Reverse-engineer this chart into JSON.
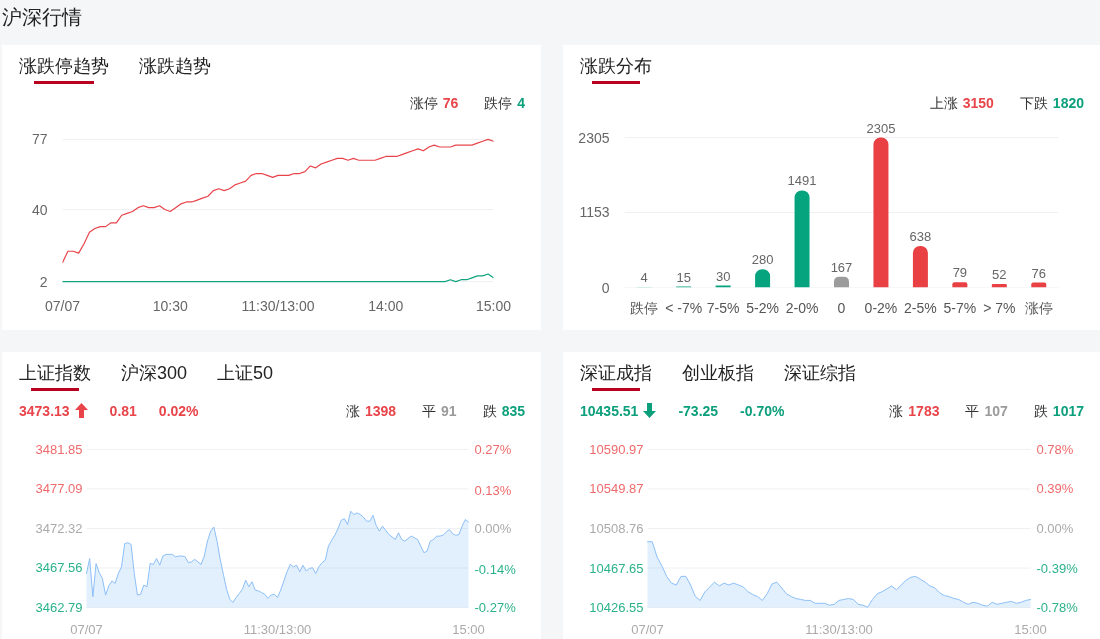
{
  "chart_data": [
    {
      "type": "line",
      "title": "涨跌停趋势",
      "annotations": [
        "沪深行情",
        "涨跌趋势",
        "涨停",
        "76",
        "跌停",
        "4"
      ],
      "categories": [
        "07/07",
        null,
        null,
        null,
        null,
        null,
        null,
        null,
        null,
        null,
        null,
        null,
        null,
        null,
        null,
        null,
        null,
        null,
        null,
        null,
        "10:30",
        null,
        null,
        null,
        null,
        null,
        null,
        null,
        null,
        null,
        null,
        null,
        null,
        null,
        null,
        null,
        null,
        null,
        null,
        null,
        "11:30/13:00",
        null,
        null,
        null,
        null,
        null,
        null,
        null,
        null,
        null,
        null,
        null,
        null,
        null,
        null,
        null,
        null,
        null,
        null,
        null,
        "14:00",
        null,
        null,
        null,
        null,
        null,
        null,
        null,
        null,
        null,
        null,
        null,
        null,
        null,
        null,
        null,
        null,
        null,
        null,
        null,
        "15:00"
      ],
      "ylim": [
        1,
        78
      ],
      "yticks": [
        2,
        40,
        77
      ],
      "grid": "y",
      "series": [
        {
          "color": "#e8444a",
          "values": [
            12,
            18,
            18,
            17,
            22,
            28,
            30,
            31,
            31,
            33,
            33,
            37,
            38,
            39,
            41,
            42,
            41,
            41,
            42,
            40,
            39,
            41,
            43,
            44,
            44,
            45,
            46,
            47,
            50,
            51,
            50,
            51,
            53,
            54,
            55,
            58,
            59,
            59,
            58,
            57,
            58,
            58,
            58,
            59,
            59,
            60,
            63,
            62,
            64,
            65,
            66,
            67,
            67,
            66,
            67,
            66,
            66,
            66,
            66,
            67,
            68,
            68,
            68,
            69,
            70,
            71,
            72,
            71,
            73,
            74,
            73,
            73,
            73,
            74,
            74,
            74,
            74,
            75,
            76,
            77,
            76
          ]
        },
        {
          "color": "#10a37f",
          "values": [
            2,
            2,
            2,
            2,
            2,
            2,
            2,
            2,
            2,
            2,
            2,
            2,
            2,
            2,
            2,
            2,
            2,
            2,
            2,
            2,
            2,
            2,
            2,
            2,
            2,
            2,
            2,
            2,
            2,
            2,
            2,
            2,
            2,
            2,
            2,
            2,
            2,
            2,
            2,
            2,
            2,
            2,
            2,
            2,
            2,
            2,
            2,
            2,
            2,
            2,
            2,
            2,
            2,
            2,
            2,
            2,
            2,
            2,
            2,
            2,
            2,
            2,
            2,
            2,
            2,
            2,
            2,
            2,
            2,
            2,
            2,
            2,
            3,
            2,
            3,
            3,
            4,
            5,
            5,
            6,
            4
          ]
        }
      ]
    },
    {
      "type": "bar",
      "title": "涨跌分布",
      "annotations": [
        "上涨",
        "3150",
        "下跌",
        "1820"
      ],
      "categories": [
        "跌停",
        "< -7%",
        "7-5%",
        "5-2%",
        "2-0%",
        "0",
        "0-2%",
        "2-5%",
        "5-7%",
        "> 7%",
        "涨停"
      ],
      "values": [
        4,
        15,
        30,
        280,
        1491,
        167,
        2305,
        638,
        79,
        52,
        76
      ],
      "colors": [
        "#05a47f",
        "#05a47f",
        "#05a47f",
        "#05a47f",
        "#05a47f",
        "#9b9b9b",
        "#e84043",
        "#e84043",
        "#e84043",
        "#e84043",
        "#e84043"
      ],
      "ylim": [
        0,
        2305
      ],
      "yticks": [
        0,
        1153,
        2305
      ],
      "grid": "y",
      "data_labels": true
    },
    {
      "type": "area",
      "title": "上证指数",
      "annotations": [
        "沪深300",
        "上证50",
        "3473.13",
        "0.81",
        "0.02%",
        "涨",
        "1398",
        "平",
        "91",
        "跌",
        "835"
      ],
      "categories": [
        "07/07",
        null,
        null,
        null,
        null,
        null,
        null,
        null,
        null,
        null,
        null,
        null,
        null,
        null,
        null,
        null,
        null,
        null,
        null,
        null,
        null,
        null,
        null,
        null,
        null,
        null,
        null,
        null,
        null,
        null,
        null,
        null,
        null,
        null,
        null,
        null,
        null,
        null,
        null,
        null,
        null,
        null,
        null,
        null,
        null,
        null,
        null,
        null,
        null,
        null,
        null,
        null,
        null,
        null,
        null,
        null,
        null,
        null,
        null,
        null,
        "11:30/13:00",
        null,
        null,
        null,
        null,
        null,
        null,
        null,
        null,
        null,
        null,
        null,
        null,
        null,
        null,
        null,
        null,
        null,
        null,
        null,
        null,
        null,
        null,
        null,
        null,
        null,
        null,
        null,
        null,
        null,
        null,
        null,
        null,
        null,
        null,
        null,
        null,
        null,
        null,
        null,
        null,
        null,
        null,
        null,
        null,
        null,
        null,
        null,
        null,
        null,
        null,
        null,
        null,
        null,
        null,
        null,
        null,
        null,
        null,
        null,
        "15:00"
      ],
      "ylim": [
        3462.79,
        3481.85
      ],
      "yticks": [
        3462.79,
        3467.56,
        3472.32,
        3477.09,
        3481.85
      ],
      "y2lim": [
        -0.27,
        0.27
      ],
      "y2ticks": [
        {
          "value": -0.27,
          "label": "-0.27%"
        },
        {
          "value": -0.14,
          "label": "-0.14%"
        },
        {
          "value": 0,
          "label": "0.00%"
        },
        {
          "value": 0.13,
          "label": "0.13%"
        },
        {
          "value": 0.27,
          "label": "0.27%"
        }
      ],
      "grid": "y",
      "series": [
        {
          "color": "#8cbff7",
          "values": [
            3466.9,
            3468.7,
            3464.1,
            3468.1,
            3467.0,
            3466.3,
            3464.3,
            3465.4,
            3466.0,
            3465.7,
            3466.9,
            3467.7,
            3470.5,
            3470.6,
            3470.4,
            3466.9,
            3464.3,
            3464.4,
            3465.5,
            3465.3,
            3468.1,
            3468.0,
            3468.7,
            3467.9,
            3469.0,
            3469.2,
            3469.2,
            3469.2,
            3468.9,
            3469.0,
            3469.0,
            3468.9,
            3468.2,
            3468.3,
            3468.6,
            3468.3,
            3468.0,
            3469.0,
            3470.8,
            3472.0,
            3472.5,
            3470.8,
            3468.6,
            3466.8,
            3465.0,
            3463.8,
            3463.4,
            3464.0,
            3464.5,
            3465.0,
            3466.1,
            3465.3,
            3465.9,
            3464.9,
            3464.8,
            3464.6,
            3464.4,
            3463.9,
            3464.3,
            3464.4,
            3464.0,
            3464.9,
            3466.0,
            3467.1,
            3468.0,
            3467.7,
            3467.9,
            3467.1,
            3467.9,
            3467.2,
            3467.5,
            3467.6,
            3466.9,
            3467.7,
            3468.2,
            3468.5,
            3470.2,
            3470.9,
            3471.5,
            3472.3,
            3473.3,
            3473.5,
            3472.8,
            3474.4,
            3474.0,
            3474.2,
            3474.0,
            3473.7,
            3473.2,
            3473.2,
            3473.9,
            3472.7,
            3472.0,
            3472.6,
            3472.1,
            3471.6,
            3471.3,
            3471.0,
            3471.8,
            3471.0,
            3470.8,
            3471.1,
            3471.4,
            3471.2,
            3471.0,
            3470.2,
            3469.4,
            3469.6,
            3470.8,
            3471.0,
            3471.4,
            3471.4,
            3471.5,
            3471.9,
            3472.2,
            3471.7,
            3471.5,
            3471.6,
            3472.6,
            3473.4,
            3473.1
          ]
        }
      ]
    },
    {
      "type": "area",
      "title": "深证成指",
      "annotations": [
        "创业板指",
        "深证综指",
        "10435.51",
        "-73.25",
        "-0.70%",
        "涨",
        "1783",
        "平",
        "107",
        "跌",
        "1017"
      ],
      "categories": [
        "07/07",
        null,
        null,
        null,
        null,
        null,
        null,
        null,
        null,
        null,
        null,
        null,
        null,
        null,
        null,
        null,
        null,
        null,
        null,
        null,
        null,
        null,
        null,
        null,
        null,
        null,
        null,
        null,
        null,
        null,
        null,
        null,
        null,
        null,
        null,
        null,
        null,
        null,
        null,
        null,
        "11:30/13:00",
        null,
        null,
        null,
        null,
        null,
        null,
        null,
        null,
        null,
        null,
        null,
        null,
        null,
        null,
        null,
        null,
        null,
        null,
        null,
        null,
        null,
        null,
        null,
        null,
        null,
        null,
        null,
        null,
        null,
        null,
        null,
        null,
        null,
        null,
        null,
        null,
        null,
        null,
        null,
        "15:00"
      ],
      "ylim": [
        10426.55,
        10590.97
      ],
      "yticks": [
        10426.55,
        10467.65,
        10508.76,
        10549.87,
        10590.97
      ],
      "y2lim": [
        -0.78,
        0.78
      ],
      "y2ticks": [
        {
          "value": -0.78,
          "label": "-0.78%"
        },
        {
          "value": -0.39,
          "label": "-0.39%"
        },
        {
          "value": 0,
          "label": "0.00%"
        },
        {
          "value": 0.39,
          "label": "0.39%"
        },
        {
          "value": 0.78,
          "label": "0.78%"
        }
      ],
      "grid": "y",
      "series": [
        {
          "color": "#8cbff7",
          "values": [
            10495,
            10495,
            10479,
            10470,
            10459,
            10452,
            10450,
            10459,
            10459,
            10450,
            10438,
            10434,
            10443,
            10448,
            10453,
            10449,
            10452,
            10450,
            10452,
            10450,
            10448,
            10443,
            10440,
            10438,
            10434,
            10441,
            10451,
            10453,
            10447,
            10441,
            10438,
            10436,
            10435,
            10434,
            10434,
            10431,
            10431,
            10431,
            10429,
            10430,
            10434,
            10435,
            10436,
            10435,
            10430,
            10429,
            10427,
            10435,
            10441,
            10443,
            10446,
            10449,
            10445,
            10450,
            10455,
            10458,
            10459,
            10456,
            10453,
            10449,
            10447,
            10442,
            10439,
            10438,
            10436,
            10435,
            10432,
            10430,
            10432,
            10431,
            10429,
            10428,
            10432,
            10430,
            10431,
            10432,
            10433,
            10431,
            10432,
            10434,
            10435
          ]
        }
      ]
    }
  ]
}
